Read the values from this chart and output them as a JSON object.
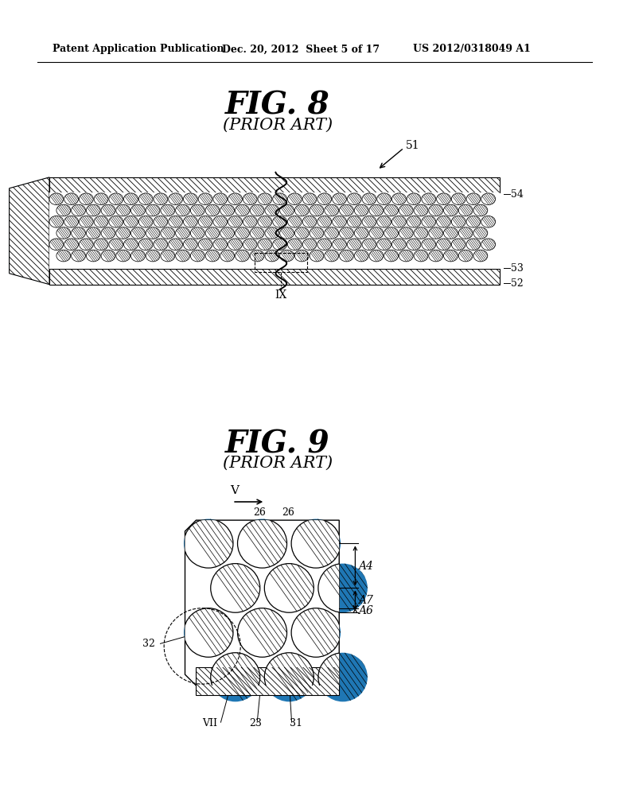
{
  "bg_color": "#ffffff",
  "header_text": "Patent Application Publication",
  "header_date": "Dec. 20, 2012  Sheet 5 of 17",
  "header_patent": "US 2012/0318049 A1",
  "fig8_title": "FIG. 8",
  "fig8_subtitle": "(PRIOR ART)",
  "fig9_title": "FIG. 9",
  "fig9_subtitle": "(PRIOR ART)",
  "label_51": "51",
  "label_54": "54",
  "label_53": "53",
  "label_52": "52",
  "label_IX": "IX",
  "label_V": "V",
  "label_26a": "26",
  "label_26b": "26",
  "label_32": "32",
  "label_VII": "VII",
  "label_23": "23",
  "label_31": "31",
  "label_A4": "A4",
  "label_A7": "A7",
  "label_A6": "A6"
}
